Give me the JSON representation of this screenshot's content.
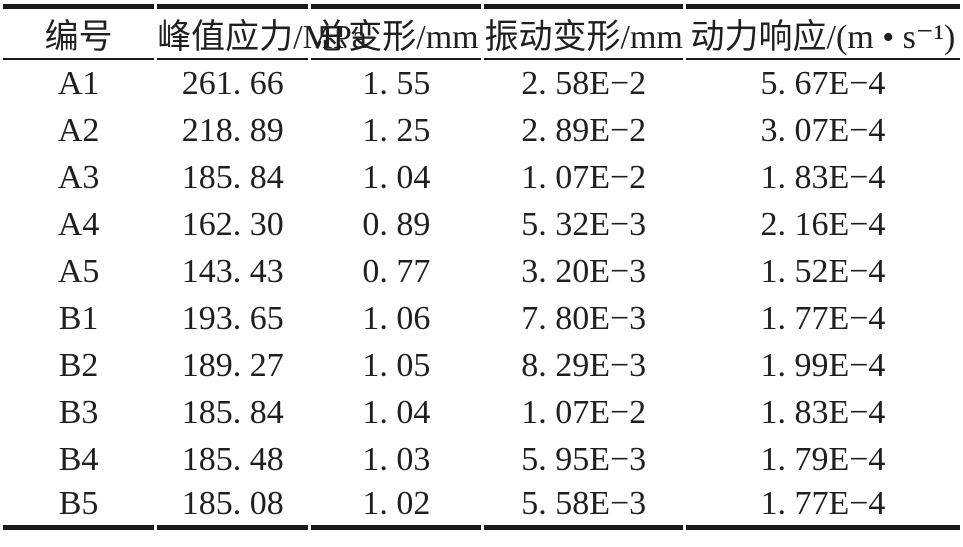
{
  "styles": {
    "background": "#ffffff",
    "text_color": "#1f1f1f",
    "rule_color": "#1a1a1a"
  },
  "chart_data": {
    "type": "table",
    "title": "",
    "columns": [
      "编号",
      "峰值应力/MPa",
      "总变形/mm",
      "振动变形/mm",
      "动力响应/(m • s⁻¹)"
    ],
    "column_widths_percent": [
      16,
      16,
      18,
      21,
      29
    ],
    "rows": [
      [
        "A1",
        "261. 66",
        "1. 55",
        "2. 58E−2",
        "5. 67E−4"
      ],
      [
        "A2",
        "218. 89",
        "1. 25",
        "2. 89E−2",
        "3. 07E−4"
      ],
      [
        "A3",
        "185. 84",
        "1. 04",
        "1. 07E−2",
        "1. 83E−4"
      ],
      [
        "A4",
        "162. 30",
        "0. 89",
        "5. 32E−3",
        "2. 16E−4"
      ],
      [
        "A5",
        "143. 43",
        "0. 77",
        "3. 20E−3",
        "1. 52E−4"
      ],
      [
        "B1",
        "193. 65",
        "1. 06",
        "7. 80E−3",
        "1. 77E−4"
      ],
      [
        "B2",
        "189. 27",
        "1. 05",
        "8. 29E−3",
        "1. 99E−4"
      ],
      [
        "B3",
        "185. 84",
        "1. 04",
        "1. 07E−2",
        "1. 83E−4"
      ],
      [
        "B4",
        "185. 48",
        "1. 03",
        "5. 95E−3",
        "1. 79E−4"
      ],
      [
        "B5",
        "185. 08",
        "1. 02",
        "5. 58E−3",
        "1. 77E−4"
      ]
    ]
  }
}
